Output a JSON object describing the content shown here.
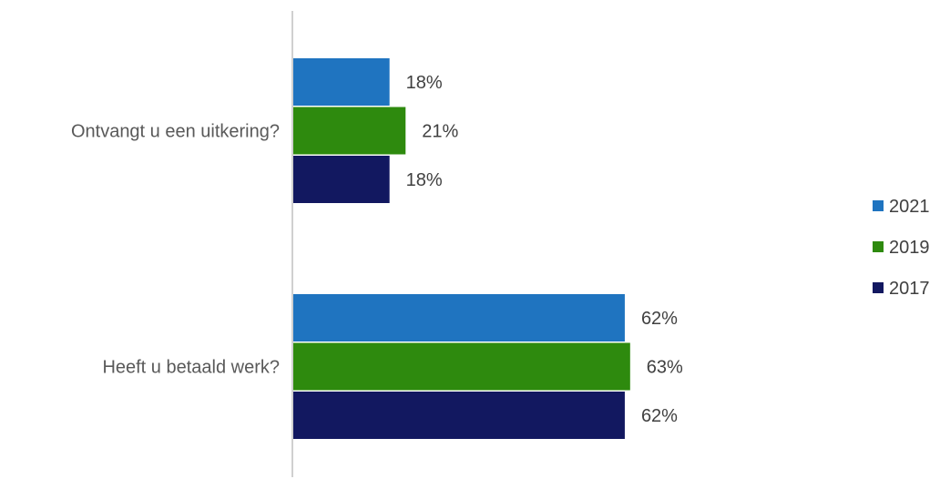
{
  "chart_data": {
    "type": "bar",
    "orientation": "horizontal",
    "categories": [
      "Ontvangt u een uitkering?",
      "Heeft u betaald werk?"
    ],
    "series": [
      {
        "name": "2021",
        "color": "#1F74C0",
        "values": [
          18,
          62
        ]
      },
      {
        "name": "2019",
        "color": "#2E8A0E",
        "values": [
          21,
          63
        ]
      },
      {
        "name": "2017",
        "color": "#121860",
        "values": [
          18,
          62
        ]
      }
    ],
    "value_suffix": "%",
    "title": "",
    "xlabel": "",
    "ylabel": "",
    "xlim": [
      0,
      100
    ],
    "axis_color": "#D0D0D0",
    "grid": false,
    "legend": "right"
  }
}
